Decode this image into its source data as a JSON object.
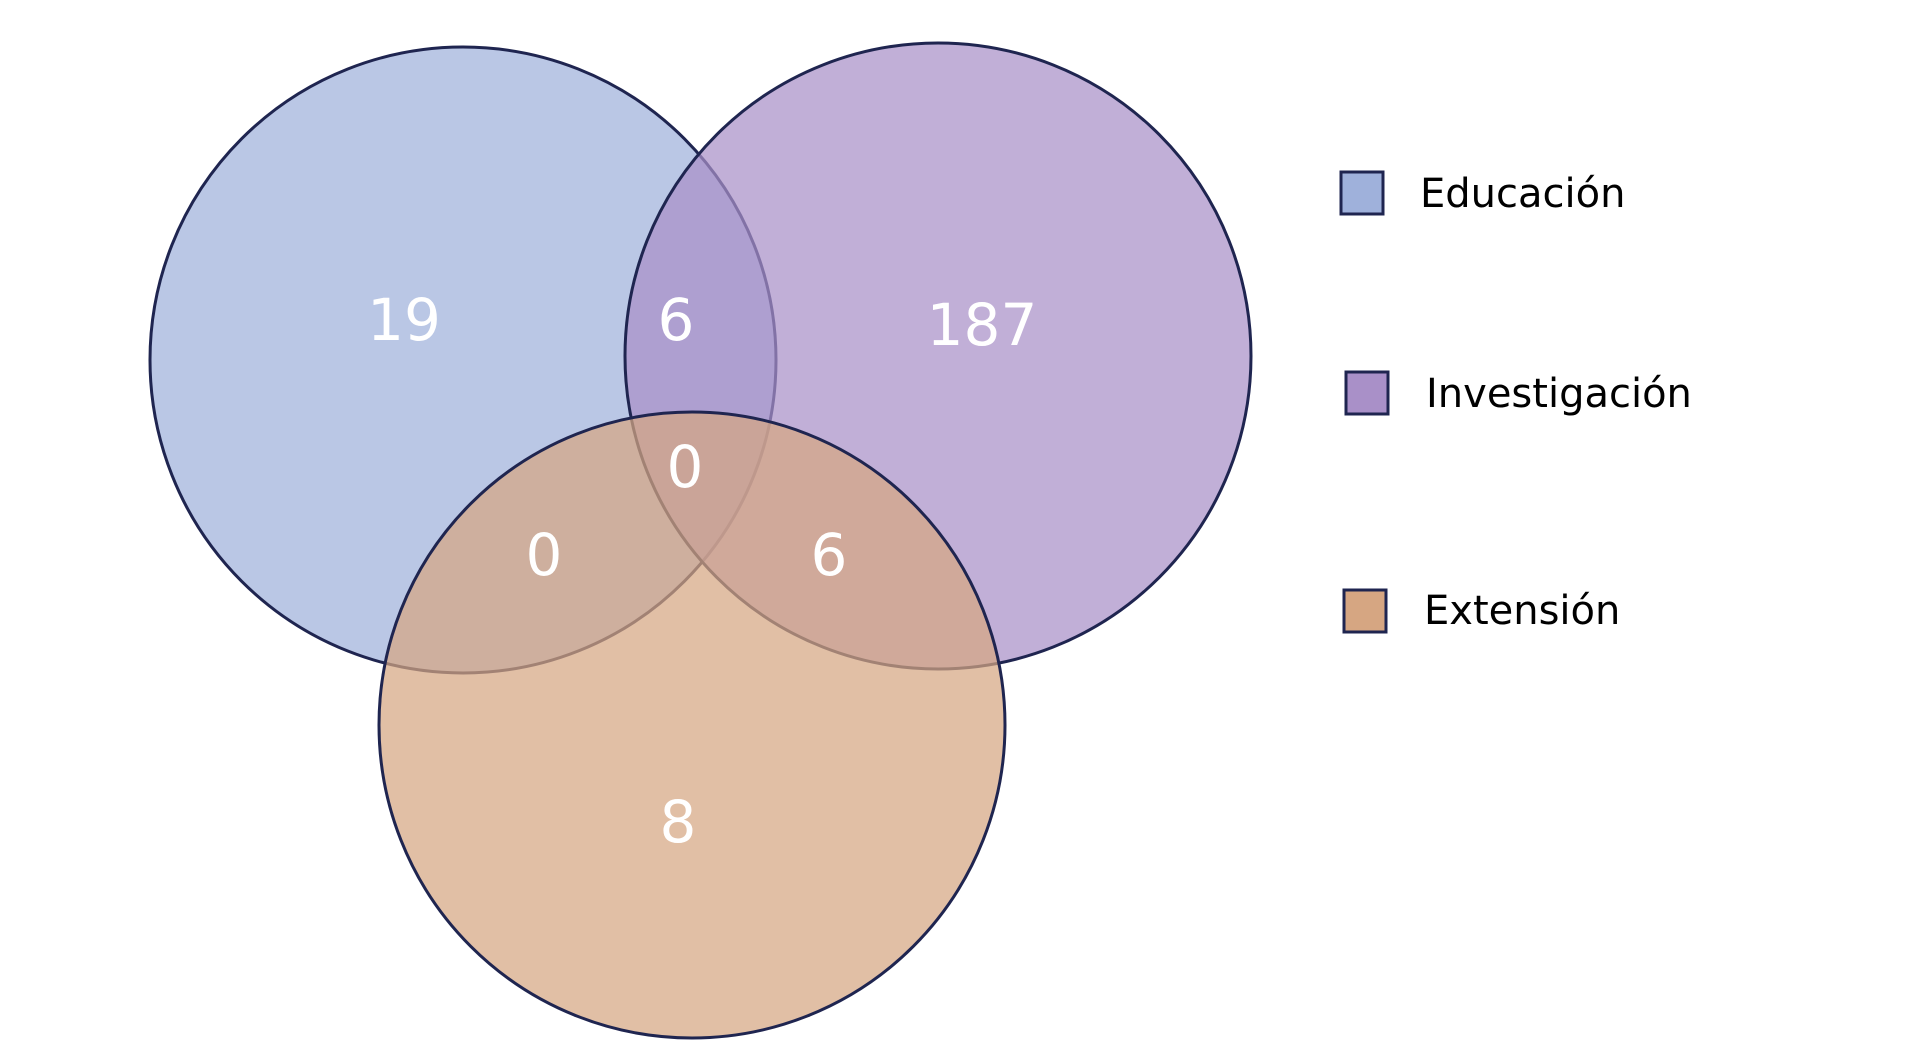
{
  "diagram": {
    "type": "venn-3",
    "sets": [
      {
        "key": "educacion",
        "label": "Educación",
        "color": "#9fb1db"
      },
      {
        "key": "investigacion",
        "label": "Investigación",
        "color": "#a990c8"
      },
      {
        "key": "extension",
        "label": "Extensión",
        "color": "#d6a682"
      }
    ],
    "outline_color": "#1f2550",
    "region_counts": {
      "educacion_only": "19",
      "educacion_investigacion": "6",
      "investigacion_only": "187",
      "all_three": "0",
      "educacion_extension": "0",
      "investigacion_extension": "6",
      "extension_only": "8"
    }
  }
}
